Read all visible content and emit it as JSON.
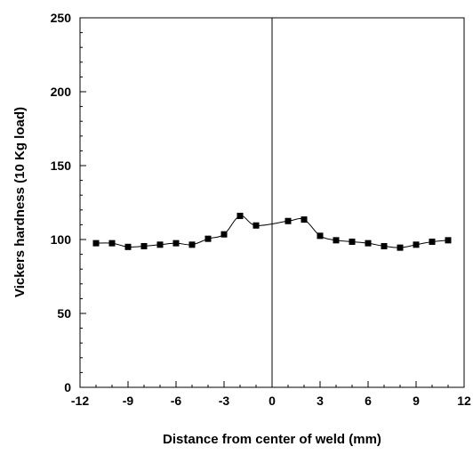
{
  "chart_data": {
    "type": "line",
    "title": "",
    "xlabel": "Distance from center of weld (mm)",
    "ylabel": "Vickers hardness (10 Kg load)",
    "xlim": [
      -12,
      12
    ],
    "ylim": [
      0,
      250
    ],
    "x_ticks": [
      -12,
      -9,
      -6,
      -3,
      0,
      3,
      6,
      9,
      12
    ],
    "y_ticks": [
      0,
      50,
      100,
      150,
      200,
      250
    ],
    "x_minor_step": 1,
    "y_minor_step": 10,
    "grid": false,
    "legend": "none",
    "center_line_x": 0,
    "marker": "square",
    "colors": {
      "line": "#000000",
      "marker": "#000000"
    },
    "series": [
      {
        "x": [
          -11,
          -10,
          -9,
          -8,
          -7,
          -6,
          -5,
          -4,
          -3,
          -2,
          -1,
          1,
          2,
          3,
          4,
          5,
          6,
          7,
          8,
          9,
          10,
          11
        ],
        "y": [
          97.5,
          97.5,
          95,
          95.5,
          96.5,
          97.5,
          96.5,
          100.5,
          103.5,
          116,
          109.5,
          112.5,
          113.5,
          102.5,
          99.5,
          98.5,
          97.5,
          95.5,
          94.5,
          96.5,
          98.5,
          99.5
        ]
      }
    ]
  }
}
